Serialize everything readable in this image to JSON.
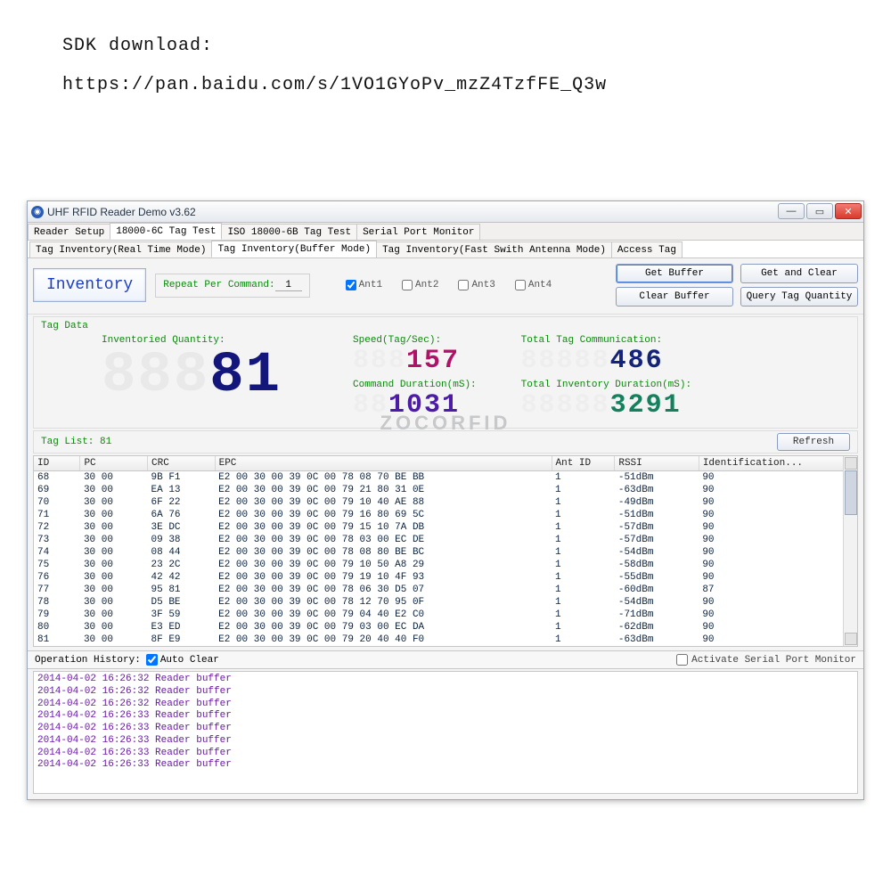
{
  "top": {
    "line1": "SDK download:",
    "line2": "https://pan.baidu.com/s/1VO1GYoPv_mzZ4TzfFE_Q3w"
  },
  "window": {
    "title": "UHF RFID Reader Demo v3.62"
  },
  "menutabs": [
    "Reader Setup",
    "18000-6C Tag Test",
    "ISO 18000-6B Tag Test",
    "Serial Port Monitor"
  ],
  "menutab_selected": 1,
  "subtabs": [
    "Tag Inventory(Real Time Mode)",
    "Tag Inventory(Buffer Mode)",
    "Tag Inventory(Fast Swith Antenna Mode)",
    "Access Tag"
  ],
  "subtab_selected": 1,
  "toolbar": {
    "inventory": "Inventory",
    "repeat_label": "Repeat Per Command:",
    "repeat_value": "1",
    "ant": [
      "Ant1",
      "Ant2",
      "Ant3",
      "Ant4"
    ],
    "ant_checked": [
      true,
      false,
      false,
      false
    ],
    "buttons": {
      "get_buffer": "Get Buffer",
      "get_and_clear": "Get and Clear",
      "clear_buffer": "Clear Buffer",
      "query_qty": "Query Tag Quantity"
    }
  },
  "tagdata_label": "Tag Data",
  "displays": {
    "inventoried_label": "Inventoried Quantity:",
    "inventoried_ghost": "888",
    "inventoried_value": "81",
    "speed_label": "Speed(Tag/Sec):",
    "speed_ghost": "888",
    "speed_value": "157",
    "duration_label": "Command Duration(mS):",
    "duration_ghost": "88",
    "duration_value": "1031",
    "total_comm_label": "Total Tag Communication:",
    "total_comm_ghost": "88888",
    "total_comm_value": "486",
    "total_inv_label": "Total Inventory Duration(mS):",
    "total_inv_ghost": "88888",
    "total_inv_value": "3291"
  },
  "watermark": "ZOCORFID",
  "taglist_label": "Tag List: 81",
  "refresh": "Refresh",
  "table": {
    "columns": [
      "ID",
      "PC",
      "CRC",
      "EPC",
      "Ant ID",
      "RSSI",
      "Identification..."
    ],
    "rows": [
      [
        "68",
        "30 00",
        "9B F1",
        "E2 00 30 00 39 0C 00 78 08 70 BE BB",
        "1",
        "-51dBm",
        "90"
      ],
      [
        "69",
        "30 00",
        "EA 13",
        "E2 00 30 00 39 0C 00 79 21 80 31 0E",
        "1",
        "-63dBm",
        "90"
      ],
      [
        "70",
        "30 00",
        "6F 22",
        "E2 00 30 00 39 0C 00 79 10 40 AE 88",
        "1",
        "-49dBm",
        "90"
      ],
      [
        "71",
        "30 00",
        "6A 76",
        "E2 00 30 00 39 0C 00 79 16 80 69 5C",
        "1",
        "-51dBm",
        "90"
      ],
      [
        "72",
        "30 00",
        "3E DC",
        "E2 00 30 00 39 0C 00 79 15 10 7A DB",
        "1",
        "-57dBm",
        "90"
      ],
      [
        "73",
        "30 00",
        "09 38",
        "E2 00 30 00 39 0C 00 78 03 00 EC DE",
        "1",
        "-57dBm",
        "90"
      ],
      [
        "74",
        "30 00",
        "08 44",
        "E2 00 30 00 39 0C 00 78 08 80 BE BC",
        "1",
        "-54dBm",
        "90"
      ],
      [
        "75",
        "30 00",
        "23 2C",
        "E2 00 30 00 39 0C 00 79 10 50 A8 29",
        "1",
        "-58dBm",
        "90"
      ],
      [
        "76",
        "30 00",
        "42 42",
        "E2 00 30 00 39 0C 00 79 19 10 4F 93",
        "1",
        "-55dBm",
        "90"
      ],
      [
        "77",
        "30 00",
        "95 81",
        "E2 00 30 00 39 0C 00 78 06 30 D5 07",
        "1",
        "-60dBm",
        "87"
      ],
      [
        "78",
        "30 00",
        "D5 BE",
        "E2 00 30 00 39 0C 00 78 12 70 95 0F",
        "1",
        "-54dBm",
        "90"
      ],
      [
        "79",
        "30 00",
        "3F 59",
        "E2 00 30 00 39 0C 00 79 04 40 E2 C0",
        "1",
        "-71dBm",
        "90"
      ],
      [
        "80",
        "30 00",
        "E3 ED",
        "E2 00 30 00 39 0C 00 79 03 00 EC DA",
        "1",
        "-62dBm",
        "90"
      ],
      [
        "81",
        "30 00",
        "8F E9",
        "E2 00 30 00 39 0C 00 79 20 40 40 F0",
        "1",
        "-63dBm",
        "90"
      ]
    ],
    "col_widths": [
      "44px",
      "64px",
      "64px",
      "320px",
      "60px",
      "80px",
      "150px"
    ]
  },
  "ophist": {
    "label": "Operation History:",
    "auto_clear": "Auto Clear",
    "auto_clear_checked": true,
    "activate_monitor": "Activate Serial Port Monitor",
    "activate_checked": false
  },
  "log": [
    "2014-04-02 16:26:32 Reader buffer",
    "2014-04-02 16:26:32 Reader buffer",
    "2014-04-02 16:26:32 Reader buffer",
    "2014-04-02 16:26:33 Reader buffer",
    "2014-04-02 16:26:33 Reader buffer",
    "2014-04-02 16:26:33 Reader buffer",
    "2014-04-02 16:26:33 Reader buffer",
    "2014-04-02 16:26:33 Reader buffer"
  ]
}
